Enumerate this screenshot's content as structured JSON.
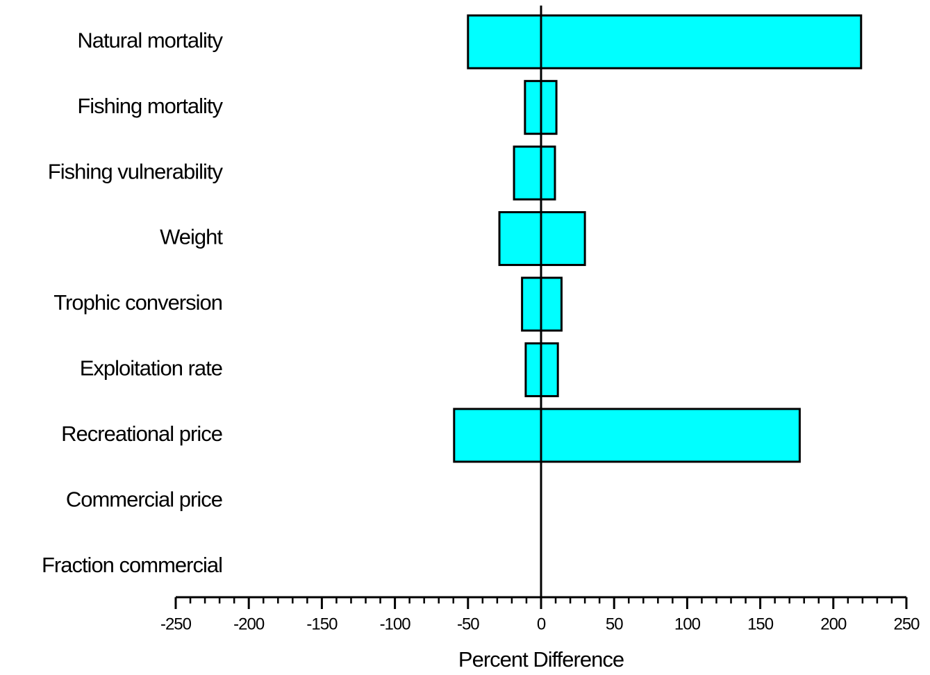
{
  "chart_data": {
    "type": "tornado",
    "orientation": "horizontal",
    "categories": [
      "Natural mortality",
      "Fishing mortality",
      "Fishing vulnerability",
      "Weight",
      "Trophic conversion",
      "Exploitation rate",
      "Recreational price",
      "Commercial price",
      "Fraction commercial"
    ],
    "color": "#00ffff",
    "series": [
      {
        "values": [
          -50,
          -11,
          -18.5,
          -28.5,
          -13,
          -10.5,
          -59.5,
          0,
          0
        ]
      },
      {
        "values": [
          219,
          10.5,
          9.5,
          30,
          14,
          11.5,
          177,
          0,
          0
        ]
      }
    ],
    "xlabel": "Percent Difference",
    "xlim": [
      -250,
      250
    ],
    "xticks": [
      -250,
      -200,
      -150,
      -100,
      -50,
      0,
      50,
      100,
      150,
      200,
      250
    ],
    "xminorticks": [
      -240,
      -230,
      -220,
      -210,
      -190,
      -180,
      -170,
      -160,
      -140,
      -130,
      -120,
      -110,
      -90,
      -80,
      -70,
      -60,
      -40,
      -30,
      -20,
      -10,
      10,
      20,
      30,
      40,
      60,
      70,
      80,
      90,
      110,
      120,
      130,
      140,
      160,
      170,
      180,
      190,
      210,
      220,
      230,
      240
    ]
  }
}
